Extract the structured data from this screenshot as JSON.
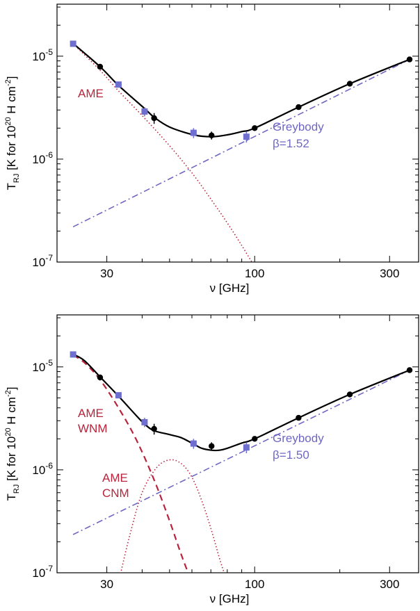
{
  "colors": {
    "ame": "#b8243c",
    "greybody": "#6f67c4",
    "data": "#000000",
    "square": "#6f6fd0"
  },
  "chart_data": [
    {
      "type": "line",
      "xscale": "log",
      "yscale": "log",
      "xlim": [
        20,
        380
      ],
      "ylim": [
        1e-07,
        3.2e-05
      ],
      "xticks": [
        30,
        100,
        300
      ],
      "xtick_labels": [
        "30",
        "100",
        "300"
      ],
      "yticks": [
        1e-07,
        1e-06,
        1e-05
      ],
      "ytick_labels": [
        {
          "base": "10",
          "exp": "-7"
        },
        {
          "base": "10",
          "exp": "-6"
        },
        {
          "base": "10",
          "exp": "-5"
        }
      ],
      "xlabel": "ν [GHz]",
      "ylabel": {
        "pre": "T",
        "sub": "RJ",
        "mid": " [K for 10",
        "sup1": "20",
        "post": " H cm",
        "sup2": "-2",
        "end": "]"
      },
      "labels": {
        "greybody": "Greybody",
        "beta": "β=1.52",
        "ame": [
          "AME"
        ]
      },
      "circles": [
        {
          "x": 28.4,
          "y": 7.9e-06,
          "err": 4e-07
        },
        {
          "x": 44.1,
          "y": 2.5e-06,
          "err": 3e-07
        },
        {
          "x": 70.4,
          "y": 1.7e-06,
          "err": 1.5e-07
        },
        {
          "x": 100,
          "y": 2e-06,
          "err": 3e-08
        },
        {
          "x": 143,
          "y": 3.2e-06,
          "err": 4e-08
        },
        {
          "x": 217,
          "y": 5.4e-06,
          "err": 5e-08
        },
        {
          "x": 353,
          "y": 9.3e-06,
          "err": 6e-08
        }
      ],
      "squares": [
        {
          "x": 22.8,
          "y": 1.32e-05,
          "err": 5e-07
        },
        {
          "x": 33,
          "y": 5.3e-06,
          "err": 3e-07
        },
        {
          "x": 40.8,
          "y": 2.9e-06,
          "err": 3e-07
        },
        {
          "x": 60.8,
          "y": 1.8e-06,
          "err": 2e-07
        },
        {
          "x": 93.5,
          "y": 1.65e-06,
          "err": 2e-07
        }
      ],
      "series": [
        {
          "role": "greybody",
          "style": "dashdot",
          "x": [
            22.8,
            353
          ],
          "y": [
            2.2e-07,
            9.3e-06
          ]
        },
        {
          "role": "ame",
          "style": "dotted",
          "x": [
            22.8,
            28.4,
            33,
            40.8,
            50,
            60.8,
            70.4,
            80,
            90,
            100
          ],
          "y": [
            1.32e-05,
            7.3e-06,
            4.6e-06,
            2.5e-06,
            1.35e-06,
            7e-07,
            4e-07,
            2.4e-07,
            1.45e-07,
            9e-08
          ]
        },
        {
          "role": "total",
          "style": "solid",
          "x": [
            22.8,
            28.4,
            33,
            40.8,
            44.1,
            50,
            60.8,
            70.4,
            80,
            90,
            100,
            143,
            217,
            353
          ],
          "y": [
            1.33e-05,
            7.9e-06,
            5.2e-06,
            3.1e-06,
            2.55e-06,
            2.05e-06,
            1.72e-06,
            1.65e-06,
            1.72e-06,
            1.85e-06,
            2e-06,
            3.2e-06,
            5.4e-06,
            9.3e-06
          ]
        }
      ]
    },
    {
      "type": "line",
      "xscale": "log",
      "yscale": "log",
      "xlim": [
        20,
        380
      ],
      "ylim": [
        1e-07,
        3.2e-05
      ],
      "xticks": [
        30,
        100,
        300
      ],
      "xtick_labels": [
        "30",
        "100",
        "300"
      ],
      "yticks": [
        1e-07,
        1e-06,
        1e-05
      ],
      "ytick_labels": [
        {
          "base": "10",
          "exp": "-7"
        },
        {
          "base": "10",
          "exp": "-6"
        },
        {
          "base": "10",
          "exp": "-5"
        }
      ],
      "xlabel": "ν [GHz]",
      "ylabel": {
        "pre": "T",
        "sub": "RJ",
        "mid": " [K for 10",
        "sup1": "20",
        "post": " H cm",
        "sup2": "-2",
        "end": "]"
      },
      "labels": {
        "greybody": "Greybody",
        "beta": "β=1.50",
        "ame": [
          "AME",
          "WNM"
        ],
        "ame2": [
          "AME",
          "CNM"
        ]
      },
      "circles": [
        {
          "x": 28.4,
          "y": 7.9e-06,
          "err": 4e-07
        },
        {
          "x": 44.1,
          "y": 2.5e-06,
          "err": 3e-07
        },
        {
          "x": 70.4,
          "y": 1.7e-06,
          "err": 1.5e-07
        },
        {
          "x": 100,
          "y": 2e-06,
          "err": 3e-08
        },
        {
          "x": 143,
          "y": 3.2e-06,
          "err": 4e-08
        },
        {
          "x": 217,
          "y": 5.4e-06,
          "err": 5e-08
        },
        {
          "x": 353,
          "y": 9.3e-06,
          "err": 6e-08
        }
      ],
      "squares": [
        {
          "x": 22.8,
          "y": 1.32e-05,
          "err": 5e-07
        },
        {
          "x": 33,
          "y": 5.3e-06,
          "err": 3e-07
        },
        {
          "x": 40.8,
          "y": 2.9e-06,
          "err": 3e-07
        },
        {
          "x": 60.8,
          "y": 1.8e-06,
          "err": 2e-07
        },
        {
          "x": 93.5,
          "y": 1.65e-06,
          "err": 2e-07
        }
      ],
      "series": [
        {
          "role": "greybody",
          "style": "dashdot",
          "x": [
            22.8,
            353
          ],
          "y": [
            2.35e-07,
            9.3e-06
          ]
        },
        {
          "role": "ame",
          "style": "dashed",
          "x": [
            22.8,
            25,
            28.4,
            33,
            38,
            44.1,
            50,
            55,
            60
          ],
          "y": [
            1.3e-05,
            1.1e-05,
            7.5e-06,
            4e-06,
            2e-06,
            8e-07,
            3.2e-07,
            1.5e-07,
            8e-08
          ]
        },
        {
          "role": "ame2",
          "style": "dotted",
          "x": [
            33,
            36,
            40,
            45,
            50,
            55,
            60,
            65,
            70,
            75,
            78,
            82
          ],
          "y": [
            8e-08,
            2.2e-07,
            6e-07,
            1.05e-06,
            1.25e-06,
            1.15e-06,
            8.5e-07,
            5e-07,
            2.7e-07,
            1.4e-07,
            1e-07,
            7e-08
          ]
        },
        {
          "role": "total",
          "style": "solid",
          "x": [
            22.8,
            25,
            28.4,
            33,
            38,
            41,
            44.1,
            50,
            55,
            60.8,
            65,
            70.4,
            75,
            80,
            90,
            100,
            143,
            217,
            353
          ],
          "y": [
            1.33e-05,
            1.15e-05,
            8e-06,
            5.2e-06,
            3.4e-06,
            2.75e-06,
            2.4e-06,
            2.2e-06,
            2.05e-06,
            1.78e-06,
            1.62e-06,
            1.55e-06,
            1.55e-06,
            1.62e-06,
            1.82e-06,
            2e-06,
            3.2e-06,
            5.4e-06,
            9.3e-06
          ]
        }
      ]
    }
  ]
}
